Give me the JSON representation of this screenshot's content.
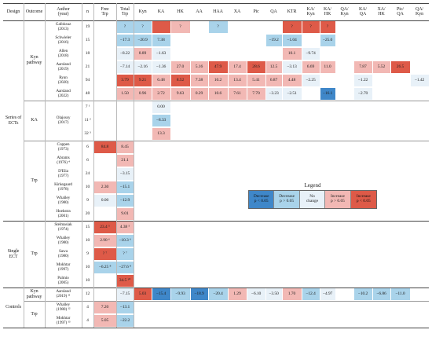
{
  "colors": {
    "dec_sig": "#3f87c9",
    "dec_ns": "#a9d3ea",
    "no_change": "#e8f1f8",
    "inc_ns": "#f2b8b4",
    "inc_sig": "#de5a48",
    "none": "#ffffff"
  },
  "headers": [
    "Design",
    "Outcome",
    "Author\n(year)",
    "n",
    "Free\nTrp",
    "Total\nTrp",
    "Kyn",
    "KA",
    "HK",
    "AA",
    "HAA",
    "XA",
    "Pic",
    "QA",
    "KTR",
    "KA/\nKyn",
    "KA/\nHK",
    "QA/\nKyn",
    "KA/\nQA",
    "XA/\nHK",
    "Pic/\nQA",
    "QA/\nKyn"
  ],
  "groups": {
    "design": [
      "Series of\nECTs",
      "Single\nECT",
      "Controls"
    ],
    "outcome": [
      "Kyn\npathway",
      "KA",
      "Trp",
      "Trp",
      "Kyn\npathway",
      "Trp"
    ]
  },
  "rows": [
    {
      "author": "Gafoksuz\n(2013)",
      "n": "19",
      "cells": [
        "",
        "?",
        "?",
        "",
        "?",
        "",
        "?",
        "",
        "",
        "",
        "?",
        "?",
        "?",
        "",
        "",
        "",
        "",
        ""
      ],
      "shades": [
        "none",
        "dec_ns",
        "dec_ns",
        "inc_sig",
        "inc_ns",
        "none",
        "dec_ns",
        "none",
        "none",
        "none",
        "inc_sig",
        "inc_sig",
        "inc_sig",
        "none",
        "none",
        "none",
        "none",
        "none"
      ]
    },
    {
      "author": "Schwieler\n(2016)",
      "n": "15",
      "cells": [
        "",
        "−17.3",
        "−20.9",
        "7.38",
        "",
        "",
        "",
        "",
        "",
        "−19.2",
        "−1.04",
        "",
        "−25.0",
        "",
        "",
        "",
        "",
        ""
      ],
      "shades": [
        "none",
        "dec_ns",
        "dec_ns",
        "dec_ns",
        "none",
        "none",
        "none",
        "none",
        "none",
        "dec_ns",
        "dec_ns",
        "none",
        "dec_ns",
        "none",
        "none",
        "none",
        "none",
        "none"
      ]
    },
    {
      "author": "Allen\n(2018)",
      "n": "18",
      "cells": [
        "",
        "−8.22",
        "8.89",
        "−1.63",
        "",
        "",
        "",
        "",
        "",
        "",
        "10.1",
        "−9.74",
        "",
        "",
        "",
        "",
        "",
        ""
      ],
      "shades": [
        "none",
        "no_change",
        "inc_ns",
        "no_change",
        "none",
        "none",
        "none",
        "none",
        "none",
        "none",
        "inc_ns",
        "no_change",
        "none",
        "none",
        "none",
        "none",
        "none",
        "none"
      ]
    },
    {
      "author": "Aarsland\n(2019)",
      "n": "21",
      "cells": [
        "",
        "−7.14",
        "−2.16",
        "−1.36",
        "27.0",
        "5.16",
        "47.9",
        "17.4",
        "28.6",
        "12.5",
        "−3.13",
        "6.69",
        "11.0",
        "",
        "7.87",
        "5.52",
        "26.5",
        ""
      ],
      "shades": [
        "none",
        "no_change",
        "no_change",
        "no_change",
        "inc_ns",
        "inc_ns",
        "inc_sig",
        "inc_ns",
        "inc_sig",
        "inc_ns",
        "no_change",
        "inc_ns",
        "inc_ns",
        "none",
        "inc_ns",
        "inc_ns",
        "inc_sig",
        "none"
      ]
    },
    {
      "author": "Ryan\n(2020)",
      "n": "94",
      "cells": [
        "",
        "3.79",
        "9.21",
        "6.48",
        "8.52",
        "7.38",
        "10.2",
        "13.4",
        "5.41",
        "6.87",
        "4.48",
        "−2.25",
        "",
        "",
        "−1.22",
        "",
        "",
        "−1.42"
      ],
      "shades": [
        "none",
        "inc_sig",
        "inc_sig",
        "inc_ns",
        "inc_sig",
        "inc_ns",
        "inc_ns",
        "inc_ns",
        "inc_ns",
        "inc_ns",
        "inc_ns",
        "no_change",
        "none",
        "none",
        "no_change",
        "none",
        "none",
        "no_change"
      ]
    },
    {
      "author": "Aarsland\n(2022)",
      "n": "48",
      "cells": [
        "",
        "1.50",
        "0.96",
        "2.72",
        "9.63",
        "0.29",
        "10.6",
        "7.61",
        "7.70",
        "−3.23",
        "−2.51",
        "",
        "−16.1",
        "",
        "−2.70",
        "",
        "",
        ""
      ],
      "shades": [
        "none",
        "inc_ns",
        "inc_ns",
        "inc_ns",
        "inc_ns",
        "inc_ns",
        "inc_ns",
        "inc_ns",
        "inc_ns",
        "no_change",
        "no_change",
        "none",
        "dec_sig",
        "none",
        "no_change",
        "none",
        "none",
        "none"
      ]
    },
    {
      "author": "",
      "n": "7 ¹",
      "cells": [
        "",
        "",
        "",
        "0.00",
        "",
        "",
        "",
        "",
        "",
        "",
        "",
        "",
        "",
        "",
        "",
        "",
        "",
        ""
      ],
      "shades": [
        "none",
        "none",
        "none",
        "no_change",
        "none",
        "none",
        "none",
        "none",
        "none",
        "none",
        "none",
        "none",
        "none",
        "none",
        "none",
        "none",
        "none",
        "none"
      ]
    },
    {
      "author": "Olajossy\n(2017)",
      "n": "11 ²",
      "cells": [
        "",
        "",
        "",
        "−8.33",
        "",
        "",
        "",
        "",
        "",
        "",
        "",
        "",
        "",
        "",
        "",
        "",
        "",
        ""
      ],
      "shades": [
        "none",
        "none",
        "none",
        "dec_ns",
        "none",
        "none",
        "none",
        "none",
        "none",
        "none",
        "none",
        "none",
        "none",
        "none",
        "none",
        "none",
        "none",
        "none"
      ]
    },
    {
      "author": "",
      "n": "32 ³",
      "cells": [
        "",
        "",
        "",
        "13.3",
        "",
        "",
        "",
        "",
        "",
        "",
        "",
        "",
        "",
        "",
        "",
        "",
        "",
        ""
      ],
      "shades": [
        "none",
        "none",
        "none",
        "inc_ns",
        "none",
        "none",
        "none",
        "none",
        "none",
        "none",
        "none",
        "none",
        "none",
        "none",
        "none",
        "none",
        "none",
        "none"
      ]
    },
    {
      "author": "Coppen\n(1973)",
      "n": "6",
      "cells": [
        "84.8",
        "8.45",
        "",
        "",
        "",
        "",
        "",
        "",
        "",
        "",
        "",
        "",
        "",
        "",
        "",
        "",
        "",
        ""
      ],
      "shades": [
        "inc_sig",
        "inc_ns",
        "none",
        "none",
        "none",
        "none",
        "none",
        "none",
        "none",
        "none",
        "none",
        "none",
        "none",
        "none",
        "none",
        "none",
        "none",
        "none"
      ]
    },
    {
      "author": "Abrams\n(1976) ⁴",
      "n": "6",
      "cells": [
        "",
        "21.1",
        "",
        "",
        "",
        "",
        "",
        "",
        "",
        "",
        "",
        "",
        "",
        "",
        "",
        "",
        "",
        ""
      ],
      "shades": [
        "none",
        "inc_ns",
        "none",
        "none",
        "none",
        "none",
        "none",
        "none",
        "none",
        "none",
        "none",
        "none",
        "none",
        "none",
        "none",
        "none",
        "none",
        "none"
      ]
    },
    {
      "author": "D'Elia\n(1977)",
      "n": "24",
      "cells": [
        "",
        "−3.15",
        "",
        "",
        "",
        "",
        "",
        "",
        "",
        "",
        "",
        "",
        "",
        "",
        "",
        "",
        "",
        ""
      ],
      "shades": [
        "none",
        "no_change",
        "none",
        "none",
        "none",
        "none",
        "none",
        "none",
        "none",
        "none",
        "none",
        "none",
        "none",
        "none",
        "none",
        "none",
        "none",
        "none"
      ]
    },
    {
      "author": "Kirkegaard\n(1978)",
      "n": "10",
      "cells": [
        "2.30",
        "−15.1",
        "",
        "",
        "",
        "",
        "",
        "",
        "",
        "",
        "",
        "",
        "",
        "",
        "",
        "",
        "",
        ""
      ],
      "shades": [
        "inc_ns",
        "dec_ns",
        "none",
        "none",
        "none",
        "none",
        "none",
        "none",
        "none",
        "none",
        "none",
        "none",
        "none",
        "none",
        "none",
        "none",
        "none",
        "none"
      ]
    },
    {
      "author": "Whalley\n(1980)",
      "n": "9",
      "cells": [
        "0.00",
        "−12.9",
        "",
        "",
        "",
        "",
        "",
        "",
        "",
        "",
        "",
        "",
        "",
        "",
        "",
        "",
        "",
        ""
      ],
      "shades": [
        "no_change",
        "dec_ns",
        "none",
        "none",
        "none",
        "none",
        "none",
        "none",
        "none",
        "none",
        "none",
        "none",
        "none",
        "none",
        "none",
        "none",
        "none",
        "none"
      ]
    },
    {
      "author": "Hoekstra\n(2001)",
      "n": "20",
      "cells": [
        "",
        "9.01",
        "",
        "",
        "",
        "",
        "",
        "",
        "",
        "",
        "",
        "",
        "",
        "",
        "",
        "",
        "",
        ""
      ],
      "shades": [
        "none",
        "inc_ns",
        "none",
        "none",
        "none",
        "none",
        "none",
        "none",
        "none",
        "none",
        "none",
        "none",
        "none",
        "none",
        "none",
        "none",
        "none",
        "none"
      ]
    },
    {
      "author": "Stelmasiak\n(1974)",
      "n": "15",
      "cells": [
        "23.4 ⁵",
        "4.38 ⁵",
        "",
        "",
        "",
        "",
        "",
        "",
        "",
        "",
        "",
        "",
        "",
        "",
        "",
        "",
        "",
        ""
      ],
      "shades": [
        "inc_sig",
        "inc_ns",
        "none",
        "none",
        "none",
        "none",
        "none",
        "none",
        "none",
        "none",
        "none",
        "none",
        "none",
        "none",
        "none",
        "none",
        "none",
        "none"
      ]
    },
    {
      "author": "Whalley\n(1980)",
      "n": "10",
      "cells": [
        "2.90 ⁶",
        "−10.3 ⁶",
        "",
        "",
        "",
        "",
        "",
        "",
        "",
        "",
        "",
        "",
        "",
        "",
        "",
        "",
        "",
        ""
      ],
      "shades": [
        "inc_ns",
        "dec_ns",
        "none",
        "none",
        "none",
        "none",
        "none",
        "none",
        "none",
        "none",
        "none",
        "none",
        "none",
        "none",
        "none",
        "none",
        "none",
        "none"
      ]
    },
    {
      "author": "Sawa\n(1980)",
      "n": "9",
      "cells": [
        "? ⁷",
        "? ⁷",
        "",
        "",
        "",
        "",
        "",
        "",
        "",
        "",
        "",
        "",
        "",
        "",
        "",
        "",
        "",
        ""
      ],
      "shades": [
        "inc_sig",
        "dec_ns",
        "none",
        "none",
        "none",
        "none",
        "none",
        "none",
        "none",
        "none",
        "none",
        "none",
        "none",
        "none",
        "none",
        "none",
        "none",
        "none"
      ]
    },
    {
      "author": "Mokhtar\n(1997)",
      "n": "10",
      "cells": [
        "−6.25 ⁸",
        "−27.6 ⁸",
        "",
        "",
        "",
        "",
        "",
        "",
        "",
        "",
        "",
        "",
        "",
        "",
        "",
        "",
        "",
        ""
      ],
      "shades": [
        "dec_ns",
        "dec_ns",
        "none",
        "none",
        "none",
        "none",
        "none",
        "none",
        "none",
        "none",
        "none",
        "none",
        "none",
        "none",
        "none",
        "none",
        "none",
        "none"
      ]
    },
    {
      "author": "Palmio\n(2005)",
      "n": "10",
      "cells": [
        "",
        "34.5 ¹⁰",
        "",
        "",
        "",
        "",
        "",
        "",
        "",
        "",
        "",
        "",
        "",
        "",
        "",
        "",
        "",
        ""
      ],
      "shades": [
        "none",
        "inc_sig",
        "none",
        "none",
        "none",
        "none",
        "none",
        "none",
        "none",
        "none",
        "none",
        "none",
        "none",
        "none",
        "none",
        "none",
        "none",
        "none"
      ]
    },
    {
      "author": "Aarsland\n(2019) ¹¹",
      "n": "12",
      "cells": [
        "",
        "−7.15",
        "5.03",
        "−15.4",
        "−9.93",
        "−18.9",
        "−20.4",
        "1.29",
        "−6.10",
        "−3.50",
        "1.70",
        "−12.4",
        "−4.97",
        "",
        "−10.2",
        "−6.86",
        "−11.0",
        ""
      ],
      "shades": [
        "none",
        "no_change",
        "inc_sig",
        "dec_sig",
        "dec_ns",
        "dec_sig",
        "dec_ns",
        "inc_ns",
        "no_change",
        "no_change",
        "inc_ns",
        "dec_ns",
        "no_change",
        "none",
        "dec_ns",
        "dec_ns",
        "dec_ns",
        "none"
      ]
    },
    {
      "author": "Whalley\n(1980) ¹²",
      "n": "4",
      "cells": [
        "7.20",
        "−13.1",
        "",
        "",
        "",
        "",
        "",
        "",
        "",
        "",
        "",
        "",
        "",
        "",
        "",
        "",
        "",
        ""
      ],
      "shades": [
        "inc_ns",
        "dec_ns",
        "none",
        "none",
        "none",
        "none",
        "none",
        "none",
        "none",
        "none",
        "none",
        "none",
        "none",
        "none",
        "none",
        "none",
        "none",
        "none"
      ]
    },
    {
      "author": "Mokhtar\n(1997) ¹³",
      "n": "4",
      "cells": [
        "5.05",
        "−22.2",
        "",
        "",
        "",
        "",
        "",
        "",
        "",
        "",
        "",
        "",
        "",
        "",
        "",
        "",
        "",
        ""
      ],
      "shades": [
        "inc_ns",
        "dec_ns",
        "none",
        "none",
        "none",
        "none",
        "none",
        "none",
        "none",
        "none",
        "none",
        "none",
        "none",
        "none",
        "none",
        "none",
        "none",
        "none"
      ]
    }
  ],
  "legend": {
    "title": "Legend",
    "items": [
      {
        "label": "Decrease\np < 0.05",
        "shade": "dec_sig"
      },
      {
        "label": "Decrease\np > 0.05",
        "shade": "dec_ns"
      },
      {
        "label": "No\nchange",
        "shade": "no_change"
      },
      {
        "label": "Increase\np > 0.05",
        "shade": "inc_ns"
      },
      {
        "label": "Increase\np < 0.05",
        "shade": "inc_sig"
      }
    ]
  }
}
